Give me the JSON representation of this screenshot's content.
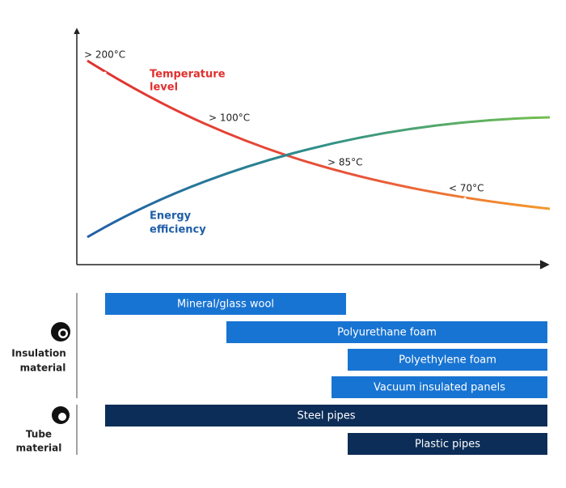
{
  "curves": [
    {
      "label": [
        "Temperature",
        "level"
      ]
    },
    {
      "label": [
        "Energy",
        "efficiency"
      ]
    }
  ],
  "temperature_labels": [
    "> 200°C",
    "> 100°C",
    "> 85°C",
    "< 70°C"
  ],
  "groups": [
    {
      "label": [
        "Insulation",
        "material"
      ]
    },
    {
      "label": [
        "Tube",
        "material"
      ]
    }
  ],
  "bars": [
    {
      "label": "Mineral/glass wool"
    },
    {
      "label": "Polyurethane foam"
    },
    {
      "label": "Polyethylene foam"
    },
    {
      "label": "Vacuum insulated panels"
    },
    {
      "label": "Steel pipes"
    },
    {
      "label": "Plastic pipes"
    }
  ]
}
